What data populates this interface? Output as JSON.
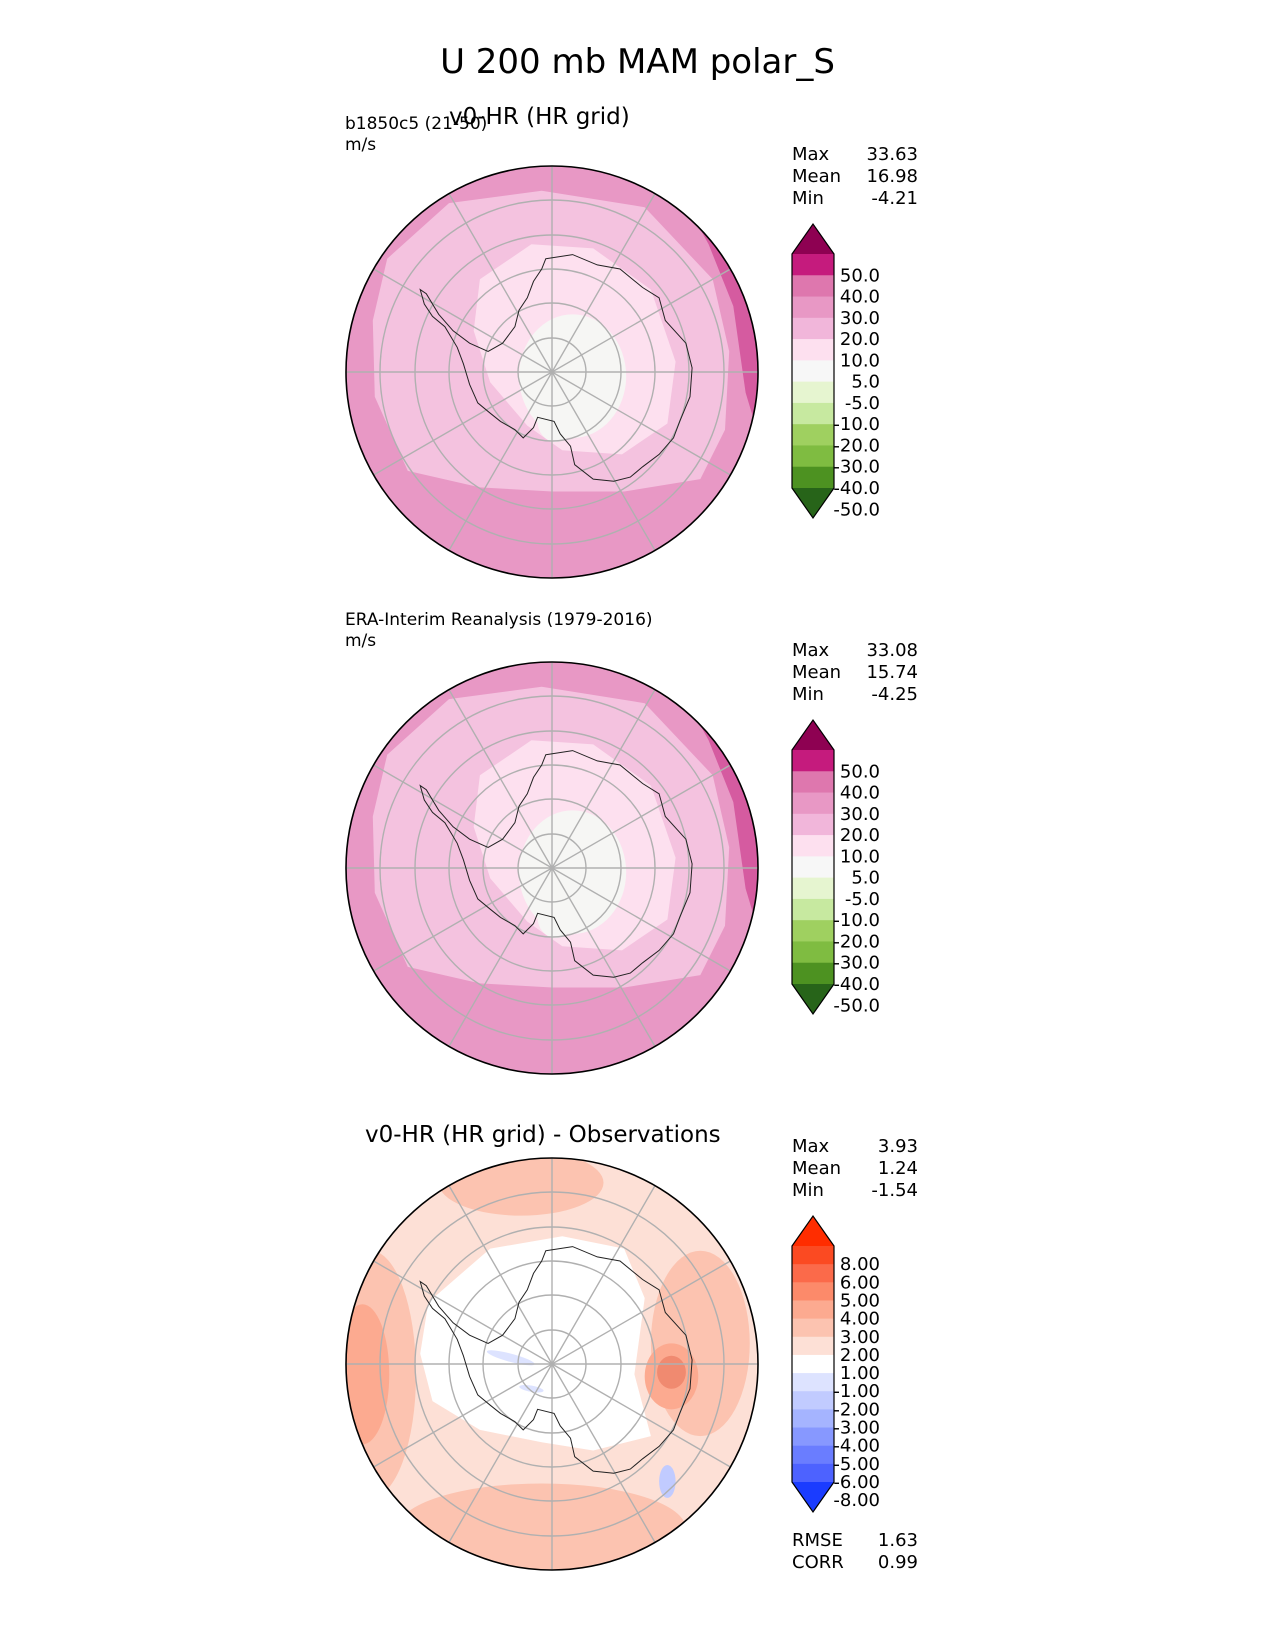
{
  "figure": {
    "title": "U 200 mb MAM polar_S"
  },
  "chart_data": [
    {
      "type": "heatmap",
      "projection": "south-polar-stereographic",
      "title": "v0-HR (HR grid)",
      "case_label": "b1850c5 (21-50)",
      "units": "m/s",
      "stats": [
        {
          "label": "Max",
          "value": "33.63"
        },
        {
          "label": "Mean",
          "value": "16.98"
        },
        {
          "label": "Min",
          "value": "-4.21"
        }
      ],
      "colorbar": {
        "extend": "both",
        "tick_labels": [
          "50.0",
          "40.0",
          "30.0",
          "20.0",
          "10.0",
          "5.0",
          "-5.0",
          "-10.0",
          "-20.0",
          "-30.0",
          "-40.0",
          "-50.0"
        ],
        "colors_top_to_bottom": [
          "#8e0152",
          "#c51b7d",
          "#de77ae",
          "#e898c5",
          "#f1b6da",
          "#fde0ef",
          "#f7f7f7",
          "#e6f5d0",
          "#c7e9a0",
          "#9fd060",
          "#7fbc41",
          "#4d9221",
          "#276419"
        ]
      },
      "field_levels": [
        "#e898c5",
        "#f4c2df",
        "#fde0ef",
        "#f6f6f4",
        "#d55ba0"
      ]
    },
    {
      "type": "heatmap",
      "projection": "south-polar-stereographic",
      "title": "",
      "case_label": "ERA-Interim Reanalysis (1979-2016)",
      "units": "m/s",
      "stats": [
        {
          "label": "Max",
          "value": "33.08"
        },
        {
          "label": "Mean",
          "value": "15.74"
        },
        {
          "label": "Min",
          "value": "-4.25"
        }
      ],
      "colorbar": {
        "extend": "both",
        "tick_labels": [
          "50.0",
          "40.0",
          "30.0",
          "20.0",
          "10.0",
          "5.0",
          "-5.0",
          "-10.0",
          "-20.0",
          "-30.0",
          "-40.0",
          "-50.0"
        ],
        "colors_top_to_bottom": [
          "#8e0152",
          "#c51b7d",
          "#de77ae",
          "#e898c5",
          "#f1b6da",
          "#fde0ef",
          "#f7f7f7",
          "#e6f5d0",
          "#c7e9a0",
          "#9fd060",
          "#7fbc41",
          "#4d9221",
          "#276419"
        ]
      },
      "field_levels": [
        "#e898c5",
        "#f4c2df",
        "#fde0ef",
        "#f6f6f4",
        "#d55ba0"
      ]
    },
    {
      "type": "heatmap",
      "projection": "south-polar-stereographic",
      "title": "v0-HR (HR grid) - Observations",
      "case_label": "",
      "units": "",
      "stats": [
        {
          "label": "Max",
          "value": "3.93"
        },
        {
          "label": "Mean",
          "value": "1.24"
        },
        {
          "label": "Min",
          "value": "-1.54"
        }
      ],
      "bottom_stats": [
        {
          "label": "RMSE",
          "value": "1.63"
        },
        {
          "label": "CORR",
          "value": "0.99"
        }
      ],
      "colorbar": {
        "extend": "both",
        "tick_labels": [
          "8.00",
          "6.00",
          "5.00",
          "4.00",
          "3.00",
          "2.00",
          "1.00",
          "-1.00",
          "-2.00",
          "-3.00",
          "-4.00",
          "-5.00",
          "-6.00",
          "-8.00"
        ],
        "colors_top_to_bottom": [
          "#ff2d00",
          "#fb4a22",
          "#fb6a4a",
          "#fc8a6a",
          "#fcaa90",
          "#fcc3b0",
          "#fde0d6",
          "#ffffff",
          "#dde3ff",
          "#c1cbff",
          "#a5b4ff",
          "#8798ff",
          "#6a7dff",
          "#4d62ff",
          "#1a3cff"
        ]
      },
      "field_levels": [
        "#fde0d6",
        "#fcc3b0",
        "#fcaa90",
        "#f08a70",
        "#dde3ff",
        "#c1cbff"
      ]
    }
  ]
}
